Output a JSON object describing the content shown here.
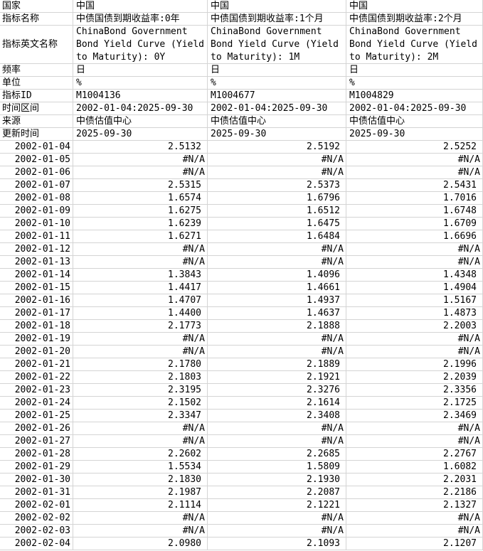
{
  "colors": {
    "grid_line": "#d4d4d4",
    "text": "#000000",
    "background": "#ffffff"
  },
  "na_text": "#N/A",
  "meta": {
    "rows": [
      {
        "key": "country",
        "label": "国家"
      },
      {
        "key": "name",
        "label": "指标名称"
      },
      {
        "key": "name_en",
        "label": "指标英文名称"
      },
      {
        "key": "frequency",
        "label": "频率"
      },
      {
        "key": "unit",
        "label": "单位"
      },
      {
        "key": "indicator_id",
        "label": "指标ID"
      },
      {
        "key": "time_range",
        "label": "时间区间"
      },
      {
        "key": "source",
        "label": "来源"
      },
      {
        "key": "updated",
        "label": "更新时间"
      }
    ],
    "series": [
      {
        "country": "中国",
        "name": "中债国债到期收益率:0年",
        "name_en": "ChinaBond Government Bond Yield Curve (Yield to Maturity): 0Y",
        "frequency": "日",
        "unit": "%",
        "indicator_id": "M1004136",
        "time_range": "2002-01-04:2025-09-30",
        "source": "中债估值中心",
        "updated": "2025-09-30"
      },
      {
        "country": "中国",
        "name": "中债国债到期收益率:1个月",
        "name_en": "ChinaBond Government Bond Yield Curve (Yield to Maturity): 1M",
        "frequency": "日",
        "unit": "%",
        "indicator_id": "M1004677",
        "time_range": "2002-01-04:2025-09-30",
        "source": "中债估值中心",
        "updated": "2025-09-30"
      },
      {
        "country": "中国",
        "name": "中债国债到期收益率:2个月",
        "name_en": "ChinaBond Government Bond Yield Curve (Yield to Maturity): 2M",
        "frequency": "日",
        "unit": "%",
        "indicator_id": "M1004829",
        "time_range": "2002-01-04:2025-09-30",
        "source": "中债估值中心",
        "updated": "2025-09-30"
      }
    ]
  },
  "table": {
    "rows": [
      {
        "date": "2002-01-04",
        "values": [
          "2.5132",
          "2.5192",
          "2.5252"
        ]
      },
      {
        "date": "2002-01-05",
        "values": [
          "#N/A",
          "#N/A",
          "#N/A"
        ]
      },
      {
        "date": "2002-01-06",
        "values": [
          "#N/A",
          "#N/A",
          "#N/A"
        ]
      },
      {
        "date": "2002-01-07",
        "values": [
          "2.5315",
          "2.5373",
          "2.5431"
        ]
      },
      {
        "date": "2002-01-08",
        "values": [
          "1.6574",
          "1.6796",
          "1.7016"
        ]
      },
      {
        "date": "2002-01-09",
        "values": [
          "1.6275",
          "1.6512",
          "1.6748"
        ]
      },
      {
        "date": "2002-01-10",
        "values": [
          "1.6239",
          "1.6475",
          "1.6709"
        ]
      },
      {
        "date": "2002-01-11",
        "values": [
          "1.6271",
          "1.6484",
          "1.6696"
        ]
      },
      {
        "date": "2002-01-12",
        "values": [
          "#N/A",
          "#N/A",
          "#N/A"
        ]
      },
      {
        "date": "2002-01-13",
        "values": [
          "#N/A",
          "#N/A",
          "#N/A"
        ]
      },
      {
        "date": "2002-01-14",
        "values": [
          "1.3843",
          "1.4096",
          "1.4348"
        ]
      },
      {
        "date": "2002-01-15",
        "values": [
          "1.4417",
          "1.4661",
          "1.4904"
        ]
      },
      {
        "date": "2002-01-16",
        "values": [
          "1.4707",
          "1.4937",
          "1.5167"
        ]
      },
      {
        "date": "2002-01-17",
        "values": [
          "1.4400",
          "1.4637",
          "1.4873"
        ]
      },
      {
        "date": "2002-01-18",
        "values": [
          "2.1773",
          "2.1888",
          "2.2003"
        ]
      },
      {
        "date": "2002-01-19",
        "values": [
          "#N/A",
          "#N/A",
          "#N/A"
        ]
      },
      {
        "date": "2002-01-20",
        "values": [
          "#N/A",
          "#N/A",
          "#N/A"
        ]
      },
      {
        "date": "2002-01-21",
        "values": [
          "2.1780",
          "2.1889",
          "2.1996"
        ]
      },
      {
        "date": "2002-01-22",
        "values": [
          "2.1803",
          "2.1921",
          "2.2039"
        ]
      },
      {
        "date": "2002-01-23",
        "values": [
          "2.3195",
          "2.3276",
          "2.3356"
        ]
      },
      {
        "date": "2002-01-24",
        "values": [
          "2.1502",
          "2.1614",
          "2.1725"
        ]
      },
      {
        "date": "2002-01-25",
        "values": [
          "2.3347",
          "2.3408",
          "2.3469"
        ]
      },
      {
        "date": "2002-01-26",
        "values": [
          "#N/A",
          "#N/A",
          "#N/A"
        ]
      },
      {
        "date": "2002-01-27",
        "values": [
          "#N/A",
          "#N/A",
          "#N/A"
        ]
      },
      {
        "date": "2002-01-28",
        "values": [
          "2.2602",
          "2.2685",
          "2.2767"
        ]
      },
      {
        "date": "2002-01-29",
        "values": [
          "1.5534",
          "1.5809",
          "1.6082"
        ]
      },
      {
        "date": "2002-01-30",
        "values": [
          "2.1830",
          "2.1930",
          "2.2031"
        ]
      },
      {
        "date": "2002-01-31",
        "values": [
          "2.1987",
          "2.2087",
          "2.2186"
        ]
      },
      {
        "date": "2002-02-01",
        "values": [
          "2.1114",
          "2.1221",
          "2.1327"
        ]
      },
      {
        "date": "2002-02-02",
        "values": [
          "#N/A",
          "#N/A",
          "#N/A"
        ]
      },
      {
        "date": "2002-02-03",
        "values": [
          "#N/A",
          "#N/A",
          "#N/A"
        ]
      },
      {
        "date": "2002-02-04",
        "values": [
          "2.0980",
          "2.1093",
          "2.1207"
        ]
      }
    ]
  }
}
